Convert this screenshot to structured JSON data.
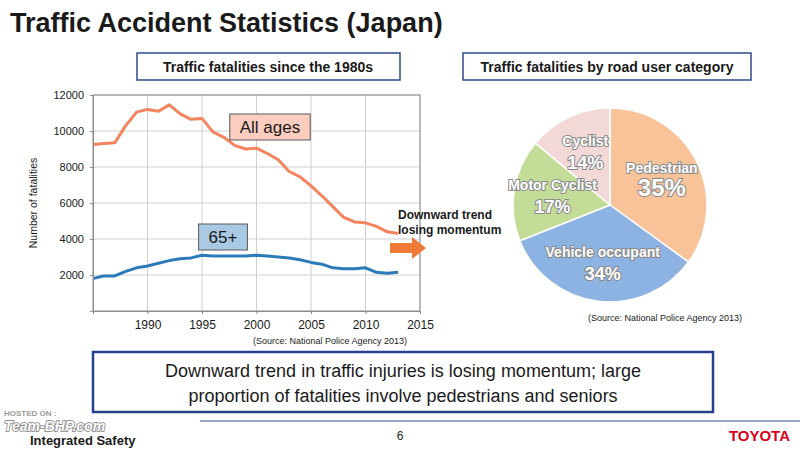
{
  "slide": {
    "title": "Traffic Accident Statistics (Japan)",
    "summary": [
      "Downward trend in traffic injuries is losing momentum; large",
      "proportion of fatalities involve pedestrians and seniors"
    ],
    "footer": "Integrated Safety",
    "page": 6,
    "brand": "TOYOTA",
    "watermark": [
      "HOSTED ON :",
      "Team-BHP.com"
    ]
  },
  "chart_data": [
    {
      "type": "line",
      "title": "Traffic fatalities since the 1980s",
      "y_label": "Number of fatalities",
      "x": [
        1985,
        1986,
        1987,
        1988,
        1989,
        1990,
        1991,
        1992,
        1993,
        1994,
        1995,
        1996,
        1997,
        1998,
        1999,
        2000,
        2001,
        2002,
        2003,
        2004,
        2005,
        2006,
        2007,
        2008,
        2009,
        2010,
        2011,
        2012,
        2013
      ],
      "series": [
        {
          "name": "All ages",
          "color": "#f4835e",
          "values": [
            9250,
            9300,
            9350,
            10300,
            11050,
            11200,
            11100,
            11450,
            10950,
            10650,
            10700,
            9950,
            9650,
            9200,
            9000,
            9050,
            8750,
            8400,
            7750,
            7450,
            6950,
            6400,
            5800,
            5200,
            4950,
            4900,
            4700,
            4400,
            4300
          ]
        },
        {
          "name": "65+",
          "color": "#2b7bb9",
          "values": [
            1800,
            1950,
            1950,
            2200,
            2400,
            2500,
            2650,
            2800,
            2900,
            2950,
            3100,
            3050,
            3050,
            3050,
            3050,
            3100,
            3050,
            3000,
            2950,
            2850,
            2700,
            2600,
            2400,
            2350,
            2350,
            2400,
            2150,
            2100,
            2150
          ]
        }
      ],
      "xlim": [
        1985,
        2015
      ],
      "xticks": [
        1990,
        1995,
        2000,
        2005,
        2010,
        2015
      ],
      "ylim": [
        0,
        12000
      ],
      "yticks": [
        2000,
        4000,
        6000,
        8000,
        10000,
        12000
      ],
      "grid": true,
      "annotation": [
        "Downward trend",
        "losing momentum"
      ],
      "source": "(Source: National Police Agency 2013)"
    },
    {
      "type": "pie",
      "title": "Traffic fatalities by road user category",
      "categories": [
        "Pedestrian",
        "Vehicle occupant",
        "Motor Cyclist",
        "Cyclist"
      ],
      "values": [
        35,
        34,
        17,
        14
      ],
      "value_labels": [
        "35%",
        "34%",
        "17%",
        "14%"
      ],
      "colors": [
        "#f9c39a",
        "#8db3e2",
        "#c3dc98",
        "#f2d9d8"
      ],
      "data_labels": true,
      "source": "(Source: National Police Agency 2013)"
    }
  ]
}
